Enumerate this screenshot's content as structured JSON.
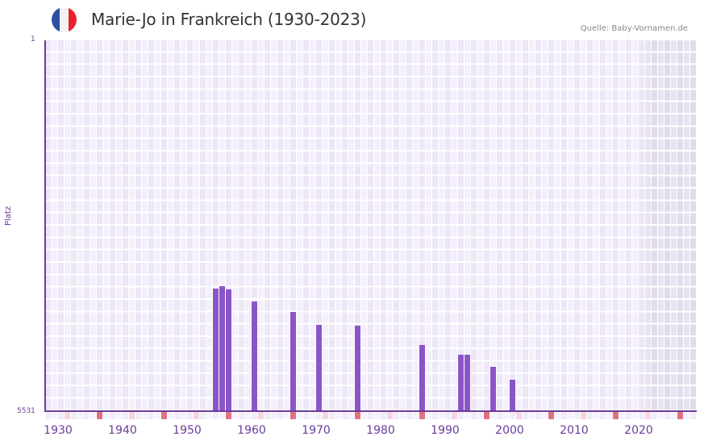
{
  "header": {
    "title": "Marie-Jo in Frankreich (1930-2023)",
    "source": "Quelle: Baby-Vornamen.de",
    "flag_colors": [
      "#2f4fa2",
      "#f2f2f2",
      "#e8212d"
    ]
  },
  "colors": {
    "bar": "#8b55c8",
    "axis": "#6a3d9a",
    "grid_light": "#f4f0fb",
    "grid_dark": "#ece6f7",
    "future_light": "#e7e4ef",
    "future_dark": "#e0dceb",
    "tick_strong": "#e07280",
    "tick_weak": "#f4d6de",
    "tick_base": "#f1ecfa"
  },
  "chart_data": {
    "type": "bar",
    "title": "Marie-Jo in Frankreich (1930-2023)",
    "xlabel": "",
    "ylabel": "Platz",
    "y_axis_inverted": true,
    "ylim": [
      5531,
      1
    ],
    "y_ticks": [
      "1",
      "5531"
    ],
    "x_ticks": [
      "1930",
      "1940",
      "1950",
      "1960",
      "1970",
      "1980",
      "1990",
      "2000",
      "2010",
      "2020"
    ],
    "xlim": [
      1930,
      2030
    ],
    "grid": true,
    "legend": null,
    "shaded_future_from": 2023,
    "categories": [
      1956,
      1957,
      1958,
      1962,
      1968,
      1972,
      1978,
      1988,
      1994,
      1995,
      1999,
      2002
    ],
    "values": [
      3704,
      3668,
      3716,
      3896,
      4052,
      4244,
      4256,
      4545,
      4689,
      4689,
      4869,
      5062
    ]
  },
  "axis": {
    "y_top_label": "1",
    "y_bottom_label": "5531",
    "y_title": "Platz",
    "x_labels": [
      "1930",
      "1940",
      "1950",
      "1960",
      "1970",
      "1980",
      "1990",
      "2000",
      "2010",
      "2020"
    ]
  }
}
